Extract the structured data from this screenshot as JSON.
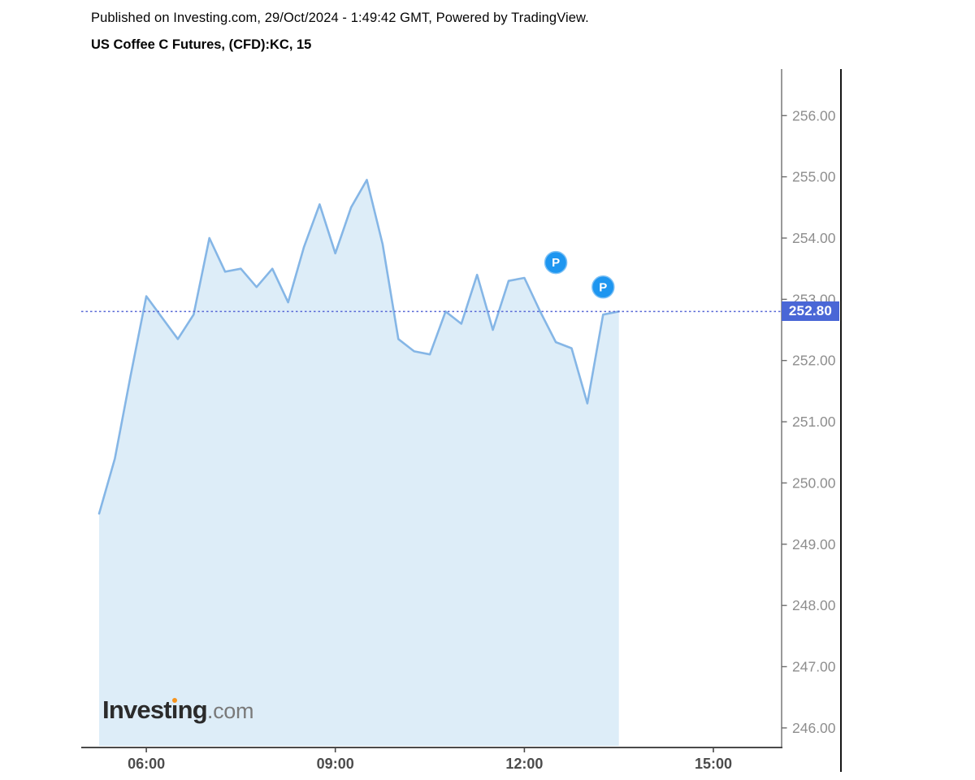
{
  "header": {
    "published_line": "Published on Investing.com, 29/Oct/2024 - 1:49:42 GMT, Powered by TradingView.",
    "title": "US Coffee C Futures, (CFD):KC, 15"
  },
  "logo": {
    "part1": "Invest",
    "part2": "ı",
    "part3": "ng",
    "tld": ".com"
  },
  "chart_data": {
    "type": "area",
    "title": "US Coffee C Futures, (CFD):KC, 15",
    "symbol": "(CFD):KC",
    "interval": "15",
    "x": [
      "05:15",
      "05:30",
      "05:45",
      "06:00",
      "06:15",
      "06:30",
      "06:45",
      "07:00",
      "07:15",
      "07:30",
      "07:45",
      "08:00",
      "08:15",
      "08:30",
      "08:45",
      "09:00",
      "09:15",
      "09:30",
      "09:45",
      "10:00",
      "10:15",
      "10:30",
      "10:45",
      "11:00",
      "11:15",
      "11:30",
      "11:45",
      "12:00",
      "12:15",
      "12:30",
      "12:45",
      "13:00",
      "13:15",
      "13:30"
    ],
    "values": [
      249.5,
      250.4,
      251.75,
      253.05,
      252.7,
      252.35,
      252.75,
      254.0,
      253.45,
      253.5,
      253.2,
      253.5,
      252.95,
      253.85,
      254.55,
      253.75,
      254.5,
      254.95,
      253.9,
      252.35,
      252.15,
      252.1,
      252.8,
      252.6,
      253.4,
      252.5,
      253.3,
      253.35,
      252.8,
      252.3,
      252.2,
      251.3,
      252.75,
      252.8
    ],
    "last_price": 252.8,
    "last_price_label": "252.80",
    "x_tick_labels": [
      "06:00",
      "09:00",
      "12:00",
      "15:00"
    ],
    "y_tick_labels": [
      "256.00",
      "255.00",
      "254.00",
      "253.00",
      "252.00",
      "251.00",
      "250.00",
      "249.00",
      "248.00",
      "247.00",
      "246.00"
    ],
    "ylim": [
      245.68,
      256.76
    ],
    "xlim_minutes": [
      298,
      965
    ],
    "grid": false,
    "legend": "none",
    "markers": [
      {
        "label": "P",
        "time": "12:30",
        "price": 253.6
      },
      {
        "label": "P",
        "time": "13:15",
        "price": 253.2
      }
    ],
    "colors": {
      "line": "#85b6e6",
      "fill": "#ddedf8",
      "dotted_line": "#5868d6",
      "price_label_bg": "#4a67d6",
      "price_label_text": "#ffffff",
      "marker_fill": "#1e96f0",
      "marker_ring": "#7cc0f5",
      "marker_text": "#ffffff",
      "y_axis_line": "#6e6e6e",
      "right_border": "#161616",
      "x_axis_line": "#4a4a4a",
      "y_tick_text": "#8e8e8e",
      "x_tick_text": "#4c4c4c",
      "logo_text": "#2b2b2b",
      "logo_tld": "#7a7a7a",
      "logo_dot": "#f7941d"
    }
  }
}
